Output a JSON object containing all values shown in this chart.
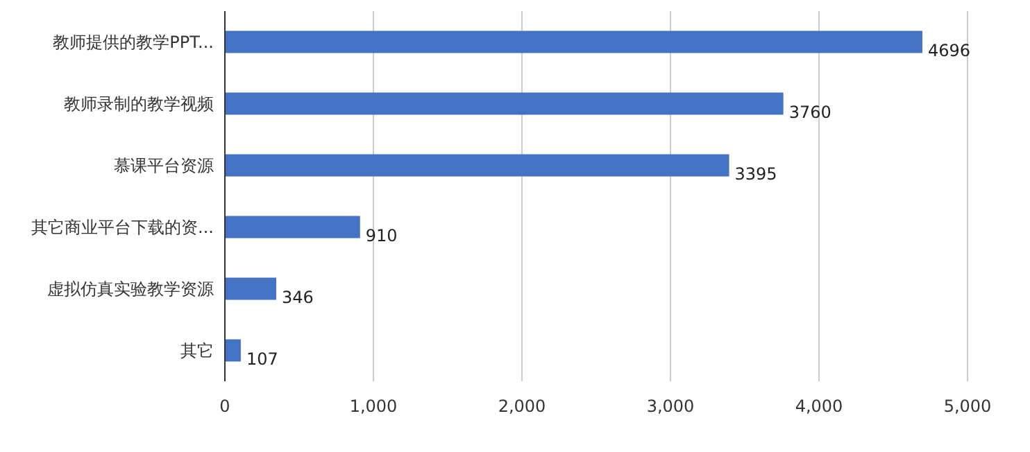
{
  "chart_data": {
    "type": "bar",
    "orientation": "horizontal",
    "categories": [
      "教师提供的教学PPT...",
      "教师录制的教学视频",
      "慕课平台资源",
      "其它商业平台下载的资...",
      "虚拟仿真实验教学资源",
      "其它"
    ],
    "values": [
      4696,
      3760,
      3395,
      910,
      346,
      107
    ],
    "color": "#4472c4",
    "xlim": [
      0,
      5000
    ],
    "xticks": [
      0,
      {
        "value": 1000,
        "label": "1,000"
      },
      {
        "value": 2000,
        "label": "2,000"
      },
      {
        "value": 3000,
        "label": "3,000"
      },
      {
        "value": 4000,
        "label": "4,000"
      },
      {
        "value": 5000,
        "label": "5,000"
      }
    ],
    "grid": "x",
    "data_labels": true
  }
}
